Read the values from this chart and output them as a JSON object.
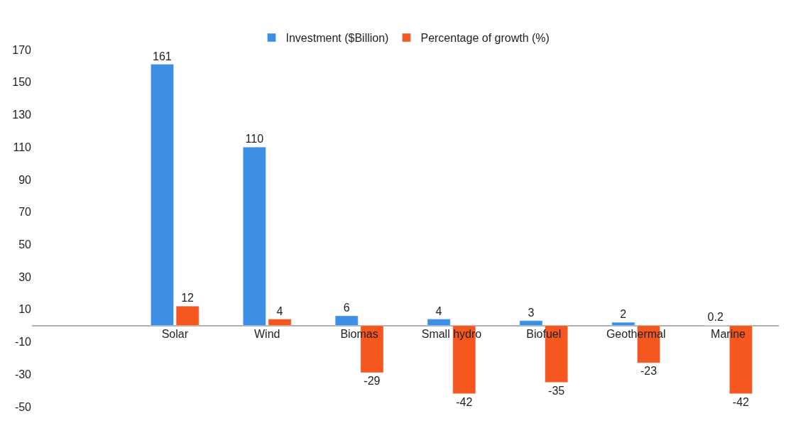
{
  "chart_data": {
    "type": "bar",
    "categories": [
      null,
      "Solar",
      "Wind",
      "Biomas",
      "Small hydro",
      "Biofuel",
      "Geothermal",
      "Marine"
    ],
    "series": [
      {
        "name": "Investment ($Billion)",
        "color": "#3d8fe6",
        "values": [
          null,
          161,
          110,
          6,
          4,
          3,
          2,
          0.2
        ]
      },
      {
        "name": "Percentage of growth (%)",
        "color": "#f5571f",
        "values": [
          null,
          12,
          4,
          -29,
          -42,
          -35,
          -23,
          -42
        ]
      }
    ],
    "ylim": [
      -50,
      170
    ],
    "yticks": [
      -50,
      -30,
      -10,
      10,
      30,
      50,
      70,
      90,
      110,
      130,
      150,
      170
    ],
    "legend": "top",
    "data_labels": true
  }
}
